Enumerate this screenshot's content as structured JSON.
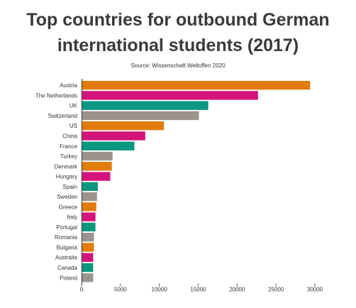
{
  "chart_data": {
    "type": "bar",
    "orientation": "horizontal",
    "title": "Top countries for outbound German international students (2017)",
    "subtitle": "Source: Wissenschaft Weltoffen 2020",
    "categories": [
      "Austria",
      "The Netherlands",
      "UK",
      "Switzerland",
      "US",
      "China",
      "France",
      "Turkey",
      "Denmark",
      "Hungary",
      "Spain",
      "Sweden",
      "Greece",
      "Italy",
      "Portugal",
      "Romania",
      "Bulgaria",
      "Australia",
      "Canada",
      "Poland"
    ],
    "values": [
      29300,
      22600,
      16200,
      15000,
      10500,
      8100,
      6700,
      3900,
      3800,
      3600,
      2000,
      1900,
      1800,
      1700,
      1700,
      1500,
      1500,
      1400,
      1400,
      1400
    ],
    "bar_colors": [
      "#e07b0c",
      "#d4137b",
      "#0b9780",
      "#9b948e",
      "#e07b0c",
      "#d4137b",
      "#0b9780",
      "#9b948e",
      "#e07b0c",
      "#d4137b",
      "#0b9780",
      "#9b948e",
      "#e07b0c",
      "#d4137b",
      "#0b9780",
      "#9b948e",
      "#e07b0c",
      "#d4137b",
      "#0b9780",
      "#9b948e"
    ],
    "xlim": [
      0,
      30000
    ],
    "xticks": [
      0,
      5000,
      10000,
      15000,
      20000,
      25000,
      30000
    ],
    "xlabel": "",
    "ylabel": "",
    "grid": false,
    "legend": "none"
  }
}
